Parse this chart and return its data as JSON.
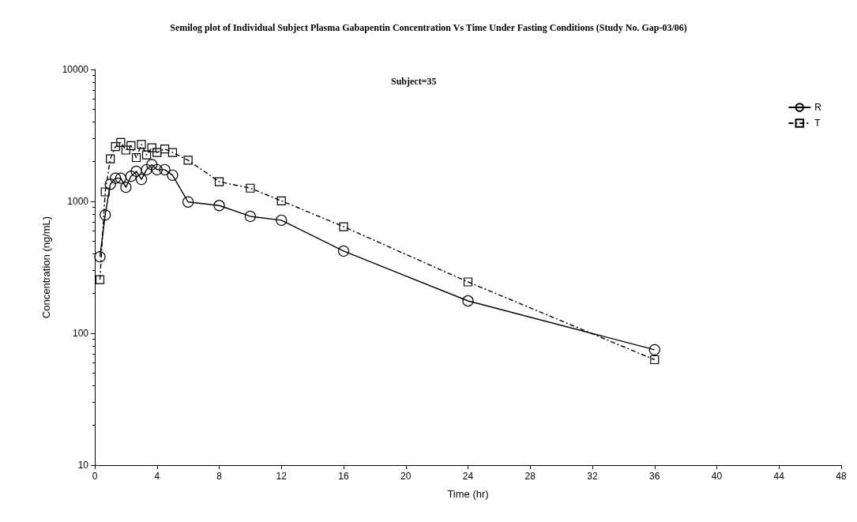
{
  "chart_data": {
    "type": "line",
    "title": "Semilog plot of Individual Subject Plasma Gabapentin Concentration Vs Time Under Fasting Conditions (Study No. Gap-03/06)",
    "subtitle": "Subject=35",
    "xlabel": "Time (hr)",
    "ylabel": "Concentration (ng/mL)",
    "xlim": [
      0,
      48
    ],
    "xticks": [
      0,
      4,
      8,
      12,
      16,
      20,
      24,
      28,
      32,
      36,
      40,
      44,
      48
    ],
    "ylim": [
      10,
      10000
    ],
    "yticks": [
      10,
      100,
      1000,
      10000
    ],
    "log": "y",
    "grid": false,
    "legend": "top right",
    "x": [
      0.33,
      0.67,
      1,
      1.33,
      1.67,
      2,
      2.33,
      2.67,
      3,
      3.33,
      3.67,
      4,
      4.5,
      5,
      6,
      8,
      10,
      12,
      16,
      24,
      36
    ],
    "series": [
      {
        "name": "R",
        "color": "#000000",
        "marker": "circle",
        "line_style": "solid",
        "values": [
          380,
          790,
          1350,
          1500,
          1500,
          1280,
          1550,
          1690,
          1470,
          1740,
          1900,
          1740,
          1740,
          1580,
          990,
          930,
          770,
          720,
          420,
          176,
          75
        ]
      },
      {
        "name": "T",
        "color": "#000000",
        "marker": "square",
        "line_style": "dashed",
        "values": [
          255,
          1180,
          2100,
          2600,
          2800,
          2450,
          2650,
          2150,
          2700,
          2250,
          2550,
          2350,
          2500,
          2350,
          2050,
          1410,
          1260,
          1010,
          643,
          245,
          63
        ]
      }
    ]
  }
}
